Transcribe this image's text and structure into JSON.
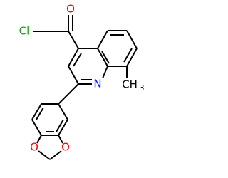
{
  "atoms": [
    {
      "label": "O",
      "color": "#ff0000"
    },
    {
      "label": "Cl",
      "color": "#1fa01f"
    },
    {
      "label": "N",
      "color": "#0000ff"
    },
    {
      "label": "CH",
      "subscript": "3",
      "color": "#000000"
    },
    {
      "label": "O",
      "color": "#ff0000"
    },
    {
      "label": "O",
      "color": "#ff0000"
    }
  ]
}
